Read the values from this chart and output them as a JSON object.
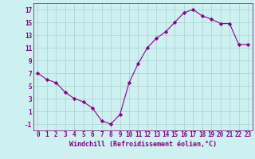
{
  "x": [
    0,
    1,
    2,
    3,
    4,
    5,
    6,
    7,
    8,
    9,
    10,
    11,
    12,
    13,
    14,
    15,
    16,
    17,
    18,
    19,
    20,
    21,
    22,
    23
  ],
  "y": [
    7,
    6,
    5.5,
    4,
    3,
    2.5,
    1.5,
    -0.5,
    -1,
    0.5,
    5.5,
    8.5,
    11,
    12.5,
    13.5,
    15,
    16.5,
    17,
    16,
    15.5,
    14.8,
    14.8,
    11.5,
    11.5
  ],
  "xlabel": "Windchill (Refroidissement éolien,°C)",
  "line_color": "#8b008b",
  "marker": "D",
  "marker_size": 2.2,
  "bg_color": "#cdf0f0",
  "grid_color": "#aacfcf",
  "ylim": [
    -2,
    18
  ],
  "xlim": [
    -0.5,
    23.5
  ],
  "yticks": [
    -1,
    1,
    3,
    5,
    7,
    9,
    11,
    13,
    15,
    17
  ],
  "xticks": [
    0,
    1,
    2,
    3,
    4,
    5,
    6,
    7,
    8,
    9,
    10,
    11,
    12,
    13,
    14,
    15,
    16,
    17,
    18,
    19,
    20,
    21,
    22,
    23
  ],
  "tick_label_fontsize": 5.5,
  "xlabel_fontsize": 6.0,
  "axis_text_color": "#800080"
}
